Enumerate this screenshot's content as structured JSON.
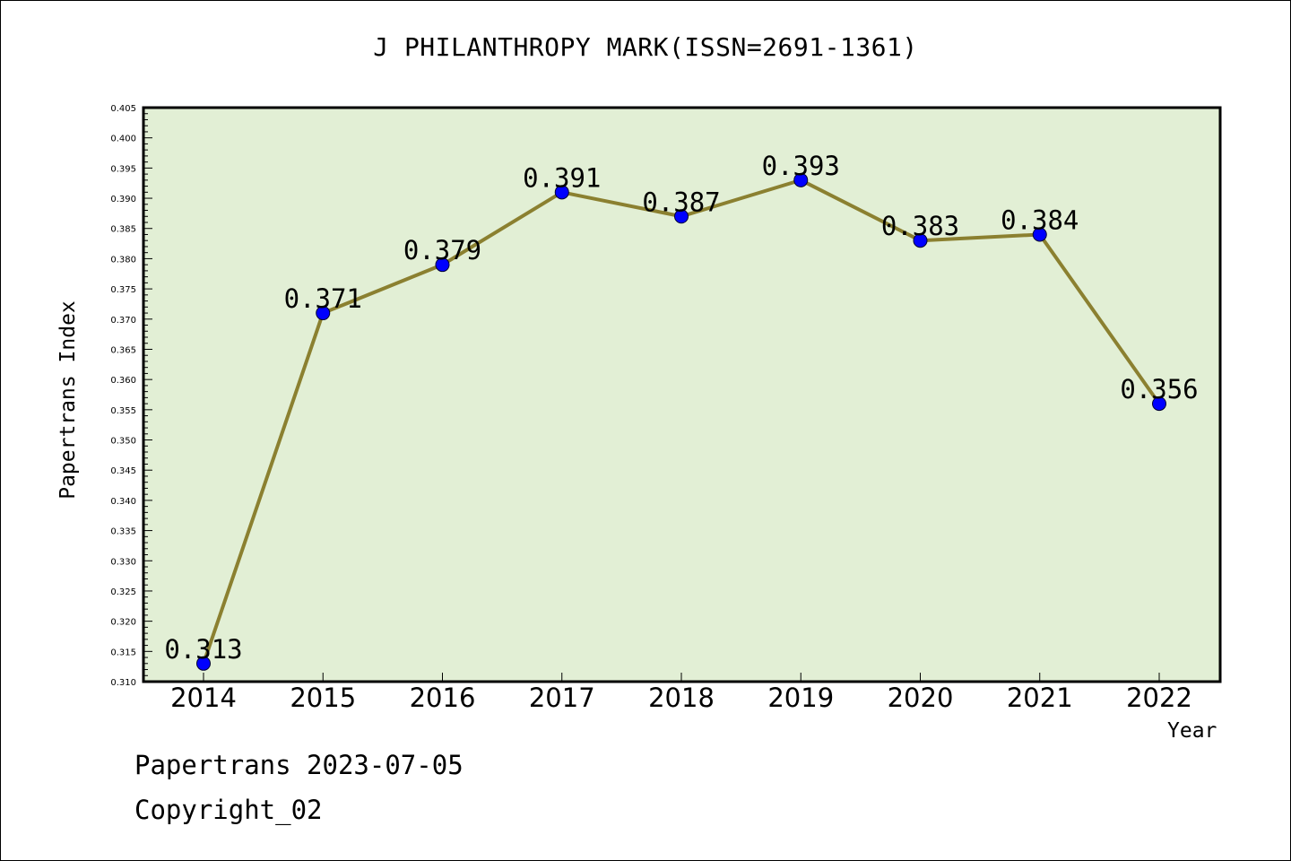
{
  "page": {
    "footer_date": "Papertrans 2023-07-05",
    "footer_copyright": "Copyright_02"
  },
  "colors": {
    "plot_background": "#e2efd5",
    "line": "#8b8030",
    "marker": "#0000ff",
    "axis": "#000000"
  },
  "chart_data": {
    "type": "line",
    "title": "J PHILANTHROPY MARK(ISSN=2691-1361)",
    "xlabel": "Year",
    "ylabel": "Papertrans Index",
    "categories": [
      "2014",
      "2015",
      "2016",
      "2017",
      "2018",
      "2019",
      "2020",
      "2021",
      "2022"
    ],
    "series": [
      {
        "values": [
          0.313,
          0.371,
          0.379,
          0.391,
          0.387,
          0.393,
          0.383,
          0.384,
          0.356
        ],
        "labels": [
          "0.313",
          "0.371",
          "0.379",
          "0.391",
          "0.387",
          "0.393",
          "0.383",
          "0.384",
          "0.356"
        ]
      }
    ],
    "ylim": [
      0.31,
      0.405
    ],
    "ytick_labels": [
      "0.310",
      "0.315",
      "0.320",
      "0.325",
      "0.330",
      "0.335",
      "0.340",
      "0.345",
      "0.350",
      "0.355",
      "0.360",
      "0.365",
      "0.370",
      "0.375",
      "0.380",
      "0.385",
      "0.390",
      "0.395",
      "0.400",
      "0.405"
    ],
    "grid": false,
    "legend": "none"
  }
}
